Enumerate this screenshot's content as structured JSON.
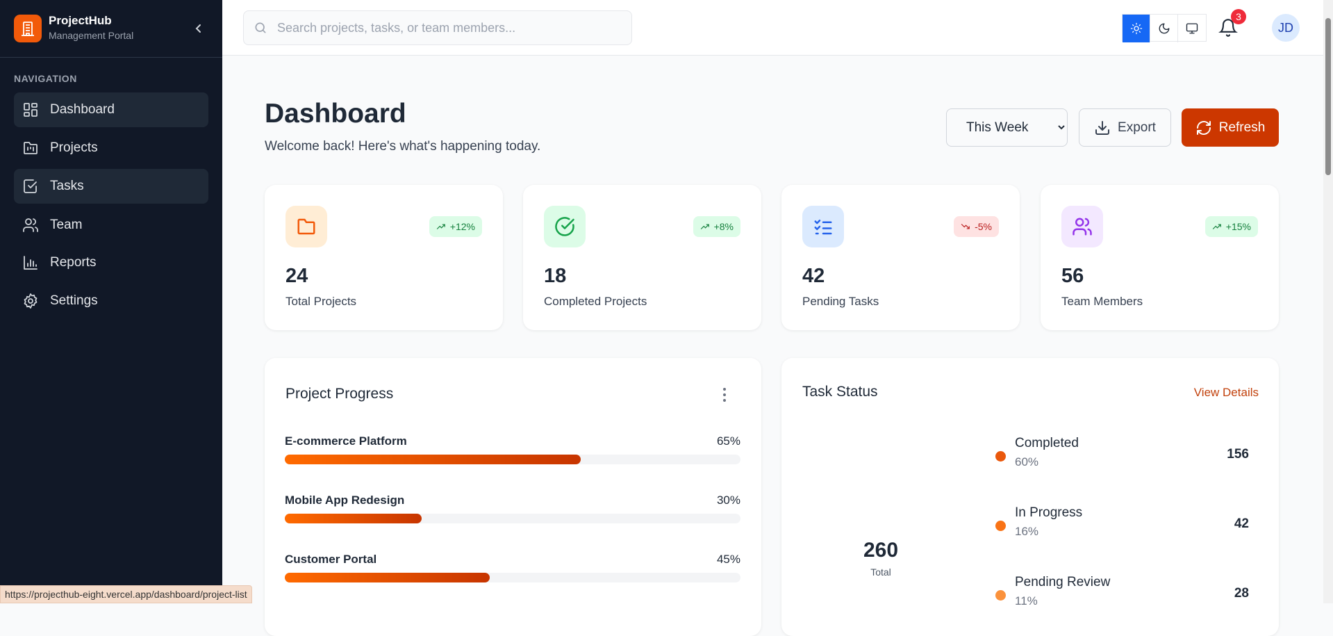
{
  "sidebar": {
    "brand": "ProjectHub",
    "subtitle": "Management Portal",
    "section": "NAVIGATION",
    "items": [
      {
        "label": "Dashboard",
        "icon": "dashboard-icon"
      },
      {
        "label": "Projects",
        "icon": "folder-kanban-icon"
      },
      {
        "label": "Tasks",
        "icon": "checkbox-icon"
      },
      {
        "label": "Team",
        "icon": "users-icon"
      },
      {
        "label": "Reports",
        "icon": "bar-chart-icon"
      },
      {
        "label": "Settings",
        "icon": "gear-icon"
      }
    ]
  },
  "header": {
    "search_placeholder": "Search projects, tasks, or team members...",
    "notifications": "3",
    "avatar": "JD",
    "theme_active": "light",
    "accent": "#1668f5"
  },
  "page": {
    "title": "Dashboard",
    "subtitle": "Welcome back! Here's what's happening today.",
    "period": "This Week",
    "export": "Export",
    "refresh": "Refresh",
    "brand_color": "#cc3700"
  },
  "stats": [
    {
      "value": "24",
      "label": "Total Projects",
      "change": "+12%",
      "trend": "up"
    },
    {
      "value": "18",
      "label": "Completed Projects",
      "change": "+8%",
      "trend": "up"
    },
    {
      "value": "42",
      "label": "Pending Tasks",
      "change": "-5%",
      "trend": "down"
    },
    {
      "value": "56",
      "label": "Team Members",
      "change": "+15%",
      "trend": "up"
    }
  ],
  "progress": {
    "title": "Project Progress",
    "items": [
      {
        "name": "E-commerce Platform",
        "percent": 65,
        "label": "65%"
      },
      {
        "name": "Mobile App Redesign",
        "percent": 30,
        "label": "30%"
      },
      {
        "name": "Customer Portal",
        "percent": 45,
        "label": "45%"
      }
    ]
  },
  "task_status": {
    "title": "Task Status",
    "link": "View Details",
    "total": "260",
    "total_label": "Total",
    "items": [
      {
        "name": "Completed",
        "pct": "60%",
        "value": "156",
        "color": "#ea580c"
      },
      {
        "name": "In Progress",
        "pct": "16%",
        "value": "42",
        "color": "#f97316"
      },
      {
        "name": "Pending Review",
        "pct": "11%",
        "value": "28",
        "color": "#fb923c"
      }
    ]
  },
  "statusbar": {
    "url": "https://projecthub-eight.vercel.app/dashboard/project-list"
  }
}
